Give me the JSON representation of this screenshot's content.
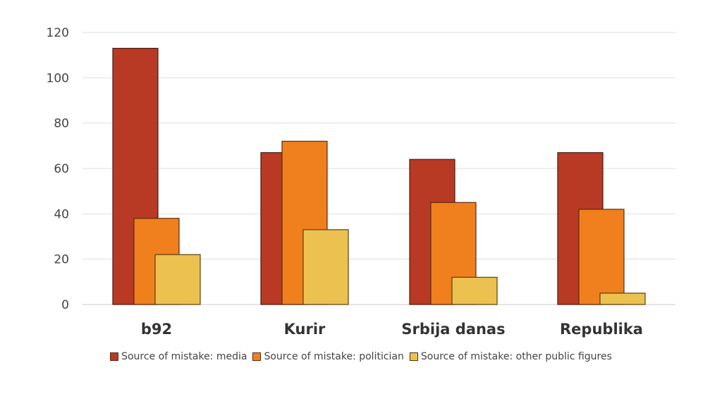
{
  "chart_data": {
    "type": "bar",
    "categories": [
      "b92",
      "Kurir",
      "Srbija danas",
      "Republika"
    ],
    "series": [
      {
        "name": "Source of mistake: media",
        "color": "#b83a24",
        "values": [
          113,
          67,
          64,
          67
        ]
      },
      {
        "name": "Source of mistake: politician",
        "color": "#f07f1e",
        "values": [
          38,
          72,
          45,
          42
        ]
      },
      {
        "name": "Source of mistake: other public figures",
        "color": "#ecc150",
        "values": [
          22,
          33,
          12,
          5
        ]
      }
    ],
    "ylim": [
      0,
      120
    ],
    "yticks": [
      0,
      20,
      40,
      60,
      80,
      100,
      120
    ],
    "grid": true,
    "legend_position": "bottom"
  }
}
